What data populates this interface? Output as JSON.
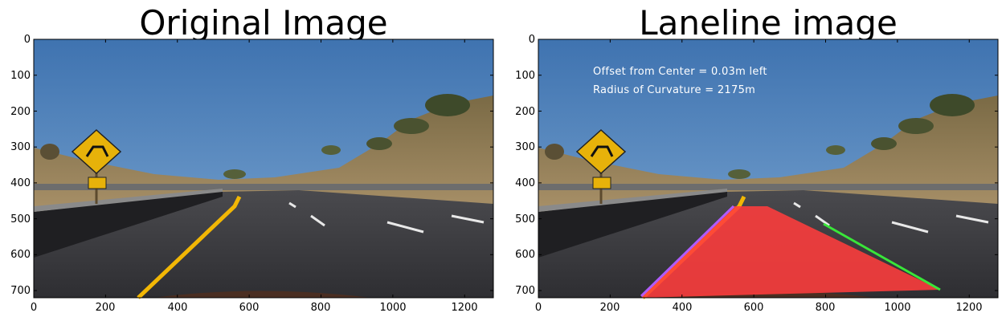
{
  "figure": {
    "panels": [
      {
        "title": "Original Image",
        "xlim": [
          0,
          1280
        ],
        "ylim": [
          720,
          0
        ],
        "xticks": [
          "0",
          "200",
          "400",
          "600",
          "800",
          "1000",
          "1200"
        ],
        "yticks": [
          "0",
          "100",
          "200",
          "300",
          "400",
          "500",
          "600",
          "700"
        ]
      },
      {
        "title": "Laneline image",
        "xlim": [
          0,
          1280
        ],
        "ylim": [
          720,
          0
        ],
        "xticks": [
          "0",
          "200",
          "400",
          "600",
          "800",
          "1000",
          "1200"
        ],
        "yticks": [
          "0",
          "100",
          "200",
          "300",
          "400",
          "500",
          "600",
          "700"
        ],
        "overlay": {
          "line1": "Offset from Center = 0.03m left",
          "line2": "Radius of Curvature = 2175m"
        }
      }
    ]
  },
  "colors": {
    "sky": "#4a7fb8",
    "road": "#3a3a3e",
    "lane_fill": "#ff4040",
    "left_lane": "#b05cff",
    "right_lane": "#39e639",
    "yellow_line": "#f2b705"
  },
  "chart_data": [
    {
      "type": "image",
      "title": "Original Image",
      "xlim": [
        0,
        1280
      ],
      "ylim": [
        720,
        0
      ],
      "xticks": [
        0,
        200,
        400,
        600,
        800,
        1000,
        1200
      ],
      "yticks": [
        0,
        100,
        200,
        300,
        400,
        500,
        600,
        700
      ],
      "grid": false
    },
    {
      "type": "image",
      "title": "Laneline image",
      "xlim": [
        0,
        1280
      ],
      "ylim": [
        720,
        0
      ],
      "xticks": [
        0,
        200,
        400,
        600,
        800,
        1000,
        1200
      ],
      "yticks": [
        0,
        100,
        200,
        300,
        400,
        500,
        600,
        700
      ],
      "grid": false,
      "annotations": [
        "Offset from Center = 0.03m left",
        "Radius of Curvature = 2175m"
      ]
    }
  ]
}
